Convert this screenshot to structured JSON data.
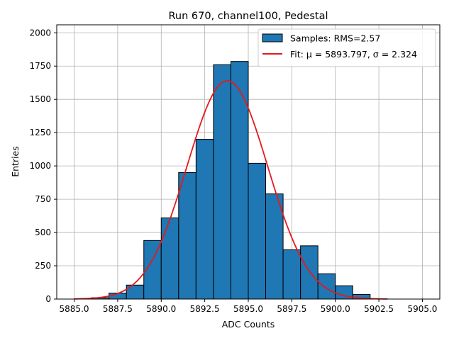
{
  "chart_data": {
    "type": "bar",
    "title": "Run 670, channel100, Pedestal",
    "xlabel": "ADC Counts",
    "ylabel": "Entries",
    "xlim": [
      5884.0,
      5906.0
    ],
    "ylim": [
      0,
      2060
    ],
    "grid": true,
    "legend_position": "top-right",
    "x_ticks": [
      5885.0,
      5887.5,
      5890.0,
      5892.5,
      5895.0,
      5897.5,
      5900.0,
      5902.5,
      5905.0
    ],
    "x_tick_labels": [
      "5885.0",
      "5887.5",
      "5890.0",
      "5892.5",
      "5895.0",
      "5897.5",
      "5900.0",
      "5902.5",
      "5905.0"
    ],
    "y_ticks": [
      0,
      250,
      500,
      750,
      1000,
      1250,
      1500,
      1750,
      2000
    ],
    "y_tick_labels": [
      "0",
      "250",
      "500",
      "750",
      "1000",
      "1250",
      "1500",
      "1750",
      "2000"
    ],
    "bin_edges": [
      5886,
      5887,
      5888,
      5889,
      5890,
      5891,
      5892,
      5893,
      5894,
      5895,
      5896,
      5897,
      5898,
      5899,
      5900,
      5901,
      5902
    ],
    "series": [
      {
        "name": "Samples: RMS=2.57",
        "kind": "histogram",
        "color": "#1f77b4",
        "edge_color": "#000000",
        "values": [
          10,
          45,
          105,
          440,
          610,
          950,
          1200,
          1760,
          1785,
          1020,
          790,
          370,
          400,
          190,
          100,
          35
        ]
      },
      {
        "name": "Fit: μ = 5893.797, σ = 2.324",
        "kind": "gaussian_fit",
        "color": "#e41a1c",
        "mu": 5893.797,
        "sigma": 2.324,
        "amplitude": 1640,
        "x_range": [
          5885.0,
          5903.0
        ]
      }
    ]
  }
}
